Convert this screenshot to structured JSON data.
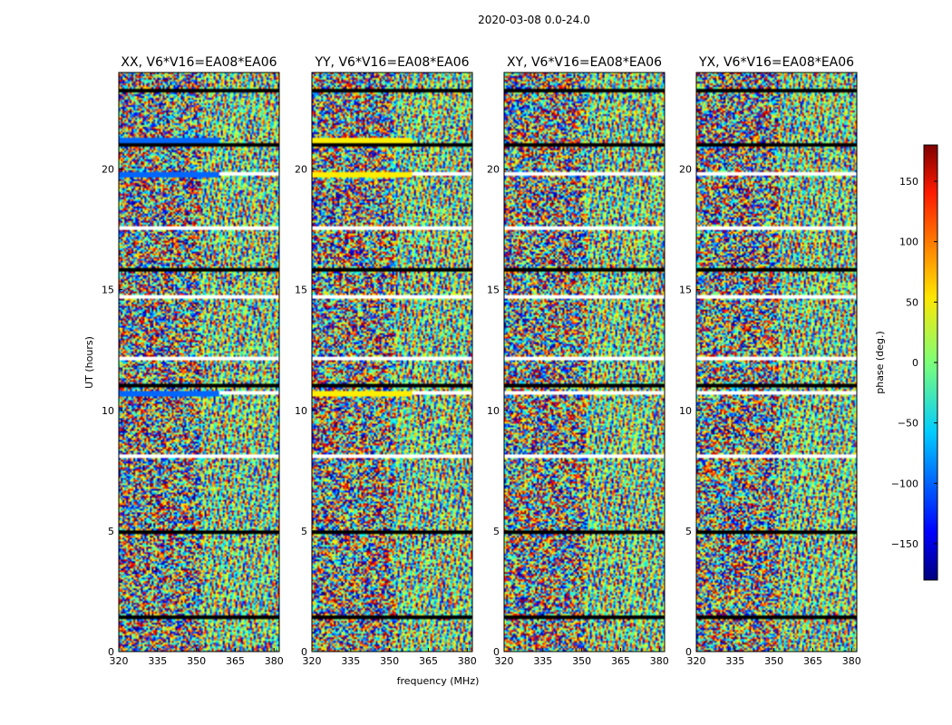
{
  "figure": {
    "suptitle": "2020-03-08 0.0-24.0",
    "xlabel": "frequency (MHz)",
    "ylabel": "UT (hours)"
  },
  "chart_data": {
    "type": "heatmap",
    "description_value": "visibility phase (deg.) vs frequency and UT",
    "x_range": [
      320,
      382
    ],
    "y_range": [
      0,
      24
    ],
    "x_ticks": [
      320,
      335,
      350,
      365,
      380
    ],
    "y_ticks": [
      0,
      5,
      10,
      15,
      20
    ],
    "panels": [
      {
        "title": "XX, V6*V16=EA08*EA06",
        "band_tint": "#0066ff"
      },
      {
        "title": "YY, V6*V16=EA08*EA06",
        "band_tint": "#ffee00"
      },
      {
        "title": "XY, V6*V16=EA08*EA06",
        "band_tint": ""
      },
      {
        "title": "YX, V6*V16=EA08*EA06",
        "band_tint": ""
      }
    ],
    "flagged_black_hours": [
      1.5,
      5.0,
      11.1,
      15.9,
      21.1,
      23.3
    ],
    "flagged_white_hours": [
      8.2,
      10.8,
      12.2,
      14.8,
      17.6,
      19.9
    ],
    "strong_band_hours": [
      10.8,
      19.9,
      21.3
    ],
    "colorbar": {
      "label": "phase (deg.)",
      "range": [
        -180,
        180
      ],
      "ticks": [
        150,
        100,
        50,
        0,
        -50,
        -100,
        -150
      ],
      "tick_labels": [
        "150",
        "100",
        "50",
        "0",
        "−50",
        "−100",
        "−150"
      ],
      "colormap": "jet"
    }
  }
}
